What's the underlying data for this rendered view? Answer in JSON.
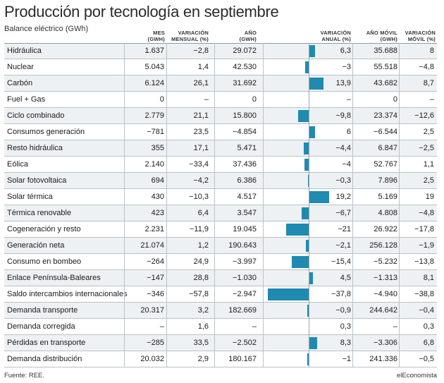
{
  "title": "Producción por tecnología en septiembre",
  "subtitle": "Balance eléctrico (GWh)",
  "headers": {
    "mes": [
      "MES",
      "(GWH)"
    ],
    "var_mensual": [
      "VARIACIÓN",
      "MENSUAL (%)"
    ],
    "anio": [
      "AÑO",
      "(GWH)"
    ],
    "var_anual": [
      "VARIACIÓN",
      "ANUAL (%)"
    ],
    "anio_movil": [
      "AÑO MÓVIL",
      "(GWH)"
    ],
    "var_movil": [
      "VARIACIÓN",
      "MÓVIL (%)"
    ]
  },
  "footer": {
    "source": "Fuente: REE.",
    "brand": "elEconomista"
  },
  "colors": {
    "bar": "#1f8bb0",
    "shade": "#eef1f3",
    "grid": "#b9c2c8"
  },
  "chart_data": {
    "type": "table",
    "title": "Producción por tecnología en septiembre",
    "columns": [
      "MES (GWH)",
      "VARIACIÓN MENSUAL (%)",
      "AÑO (GWH)",
      "VARIACIÓN ANUAL (%)",
      "AÑO MÓVIL (GWH)",
      "VARIACIÓN MÓVIL (%)"
    ],
    "bar_column": "VARIACIÓN ANUAL (%)",
    "bar_range": [
      -40,
      20
    ],
    "rows": [
      {
        "label": "Hidráulica",
        "mes": "1.637",
        "var_mensual": "−2,8",
        "anio": "29.072",
        "var_anual": "6,3",
        "var_anual_value": 6.3,
        "anio_movil": "35.688",
        "var_movil": "8"
      },
      {
        "label": "Nuclear",
        "mes": "5.043",
        "var_mensual": "1,4",
        "anio": "42.530",
        "var_anual": "−3",
        "var_anual_value": -3,
        "anio_movil": "55.518",
        "var_movil": "−4,8"
      },
      {
        "label": "Carbón",
        "mes": "6.124",
        "var_mensual": "26,1",
        "anio": "31.692",
        "var_anual": "13,9",
        "var_anual_value": 13.9,
        "anio_movil": "43.682",
        "var_movil": "8,7"
      },
      {
        "label": "Fuel + Gas",
        "mes": "0",
        "var_mensual": "–",
        "anio": "0",
        "var_anual": "–",
        "var_anual_value": null,
        "anio_movil": "0",
        "var_movil": "–"
      },
      {
        "label": "Ciclo combinado",
        "mes": "2.779",
        "var_mensual": "21,1",
        "anio": "15.800",
        "var_anual": "−9,8",
        "var_anual_value": -9.8,
        "anio_movil": "23.374",
        "var_movil": "−12,6"
      },
      {
        "label": "Consumos generación",
        "mes": "−781",
        "var_mensual": "23,5",
        "anio": "−4.854",
        "var_anual": "6",
        "var_anual_value": 6,
        "anio_movil": "−6.544",
        "var_movil": "2,5"
      },
      {
        "label": "Resto hidráulica",
        "mes": "355",
        "var_mensual": "17,1",
        "anio": "5.471",
        "var_anual": "−4,4",
        "var_anual_value": -4.4,
        "anio_movil": "6.847",
        "var_movil": "−2,5"
      },
      {
        "label": "Eólica",
        "mes": "2.140",
        "var_mensual": "−33,4",
        "anio": "37.436",
        "var_anual": "−4",
        "var_anual_value": -4,
        "anio_movil": "52.767",
        "var_movil": "1,1"
      },
      {
        "label": "Solar fotovoltaica",
        "mes": "694",
        "var_mensual": "−4,2",
        "anio": "6.386",
        "var_anual": "−0,3",
        "var_anual_value": -0.3,
        "anio_movil": "7.896",
        "var_movil": "2,5"
      },
      {
        "label": "Solar térmica",
        "mes": "430",
        "var_mensual": "−10,3",
        "anio": "4.517",
        "var_anual": "19,2",
        "var_anual_value": 19.2,
        "anio_movil": "5.169",
        "var_movil": "19"
      },
      {
        "label": "Térmica renovable",
        "mes": "423",
        "var_mensual": "6,4",
        "anio": "3.547",
        "var_anual": "−6,7",
        "var_anual_value": -6.7,
        "anio_movil": "4.808",
        "var_movil": "−4,8"
      },
      {
        "label": "Cogeneración y resto",
        "mes": "2.231",
        "var_mensual": "−11,9",
        "anio": "19.045",
        "var_anual": "−21",
        "var_anual_value": -21,
        "anio_movil": "26.922",
        "var_movil": "−17,8"
      },
      {
        "label": "Generación neta",
        "mes": "21.074",
        "var_mensual": "1,2",
        "anio": "190.643",
        "var_anual": "−2,1",
        "var_anual_value": -2.1,
        "anio_movil": "256.128",
        "var_movil": "−1,9"
      },
      {
        "label": "Consumo en bombeo",
        "mes": "−264",
        "var_mensual": "24,9",
        "anio": "−3.997",
        "var_anual": "−15,4",
        "var_anual_value": -15.4,
        "anio_movil": "−5.232",
        "var_movil": "−13,8"
      },
      {
        "label": "Enlace Península-Baleares",
        "mes": "−147",
        "var_mensual": "28,8",
        "anio": "−1.030",
        "var_anual": "4,5",
        "var_anual_value": 4.5,
        "anio_movil": "−1.313",
        "var_movil": "8,1"
      },
      {
        "label": "Saldo intercambios internacionales",
        "mes": "−346",
        "var_mensual": "−57,8",
        "anio": "−2.947",
        "var_anual": "−37,8",
        "var_anual_value": -37.8,
        "anio_movil": "−4.940",
        "var_movil": "−38,8"
      },
      {
        "label": "Demanda transporte",
        "mes": "20.317",
        "var_mensual": "3,2",
        "anio": "182.669",
        "var_anual": "−0,9",
        "var_anual_value": -0.9,
        "anio_movil": "244.642",
        "var_movil": "−0,4"
      },
      {
        "label": "Demanda corregida",
        "mes": "–",
        "var_mensual": "1,6",
        "anio": "–",
        "var_anual": "0,3",
        "var_anual_value": 0.3,
        "anio_movil": "–",
        "var_movil": "0,3"
      },
      {
        "label": "Pérdidas en transporte",
        "mes": "−285",
        "var_mensual": "33,5",
        "anio": "−2.502",
        "var_anual": "8,3",
        "var_anual_value": 8.3,
        "anio_movil": "−3.306",
        "var_movil": "6,8"
      },
      {
        "label": "Demanda distribución",
        "mes": "20.032",
        "var_mensual": "2,9",
        "anio": "180.167",
        "var_anual": "−1",
        "var_anual_value": -1,
        "anio_movil": "241.336",
        "var_movil": "−0,5"
      }
    ]
  }
}
